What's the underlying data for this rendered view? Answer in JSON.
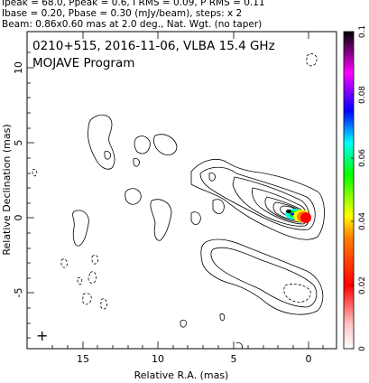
{
  "header": {
    "line1": "Ipeak = 68.0, Ppeak = 0.6, I RMS = 0.09, P RMS = 0.11",
    "line2": "Ibase = 0.20, Pbase = 0.30 (mJy/beam), steps: x 2",
    "line3": "Beam: 0.86x0.60 mas at 2.0 deg., Nat. Wgt. (no taper)"
  },
  "plot": {
    "title": "0210+515, 2016-11-06, VLBA 15.4 GHz",
    "subtitle": "MOJAVE Program",
    "xlabel": "Relative R.A. (mas)",
    "ylabel": "Relative Declination (mas)",
    "xticks": [
      "15",
      "10",
      "5",
      "0"
    ],
    "yticks": [
      "10",
      "5",
      "0",
      "-5"
    ]
  },
  "colorbar": {
    "ticks": [
      "0.1",
      "0.08",
      "0.06",
      "0.04",
      "0.02",
      "0"
    ],
    "colors": [
      "#000000",
      "#ff00ff",
      "#0000ff",
      "#00ffff",
      "#00ff00",
      "#ffff00",
      "#ff8000",
      "#ff0000",
      "#ffc0c0",
      "#ffffff"
    ]
  },
  "beam_marker": "+"
}
